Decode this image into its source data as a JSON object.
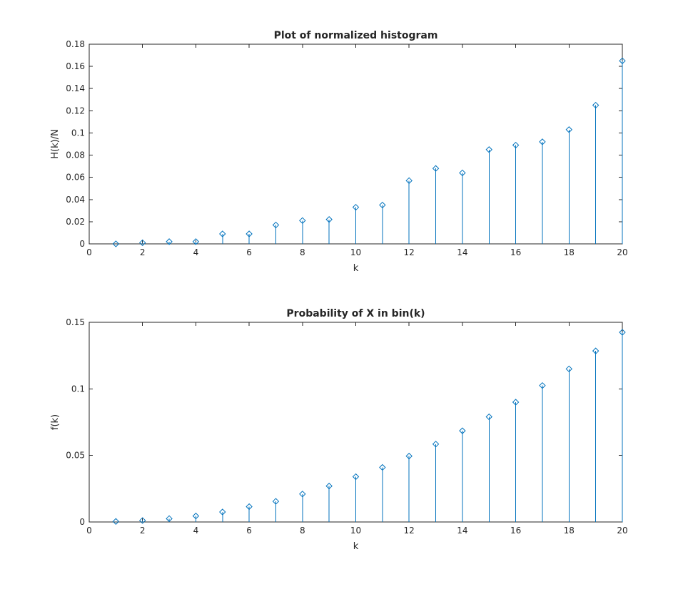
{
  "chart_data": [
    {
      "type": "stem",
      "title": "Plot of normalized histogram",
      "xlabel": "k",
      "ylabel": "H(k)/N",
      "xlim": [
        0,
        20
      ],
      "ylim": [
        0,
        0.18
      ],
      "xticks": [
        0,
        2,
        4,
        6,
        8,
        10,
        12,
        14,
        16,
        18,
        20
      ],
      "yticks": [
        0,
        0.02,
        0.04,
        0.06,
        0.08,
        0.1,
        0.12,
        0.14,
        0.16,
        0.18
      ],
      "ytick_labels": [
        "0",
        "0.02",
        "0.04",
        "0.06",
        "0.08",
        "0.1",
        "0.12",
        "0.14",
        "0.16",
        "0.18"
      ],
      "grid": false,
      "marker": "diamond",
      "color": "#0072BD",
      "x": [
        1,
        2,
        3,
        4,
        5,
        6,
        7,
        8,
        9,
        10,
        11,
        12,
        13,
        14,
        15,
        16,
        17,
        18,
        19,
        20
      ],
      "values": [
        0.0,
        0.001,
        0.002,
        0.002,
        0.009,
        0.009,
        0.017,
        0.021,
        0.022,
        0.033,
        0.035,
        0.057,
        0.068,
        0.064,
        0.085,
        0.089,
        0.092,
        0.103,
        0.125,
        0.165
      ]
    },
    {
      "type": "stem",
      "title": "Probability of X in bin(k)",
      "xlabel": "k",
      "ylabel": "f(k)",
      "xlim": [
        0,
        20
      ],
      "ylim": [
        0,
        0.15
      ],
      "xticks": [
        0,
        2,
        4,
        6,
        8,
        10,
        12,
        14,
        16,
        18,
        20
      ],
      "yticks": [
        0,
        0.05,
        0.1,
        0.15
      ],
      "ytick_labels": [
        "0",
        "0.05",
        "0.1",
        "0.15"
      ],
      "grid": false,
      "marker": "diamond",
      "color": "#0072BD",
      "x": [
        1,
        2,
        3,
        4,
        5,
        6,
        7,
        8,
        9,
        10,
        11,
        12,
        13,
        14,
        15,
        16,
        17,
        18,
        19,
        20
      ],
      "values": [
        0.0004,
        0.0011,
        0.0025,
        0.0045,
        0.0075,
        0.0115,
        0.0155,
        0.021,
        0.027,
        0.034,
        0.041,
        0.0495,
        0.0585,
        0.0685,
        0.079,
        0.09,
        0.1025,
        0.115,
        0.1285,
        0.1425
      ]
    }
  ]
}
